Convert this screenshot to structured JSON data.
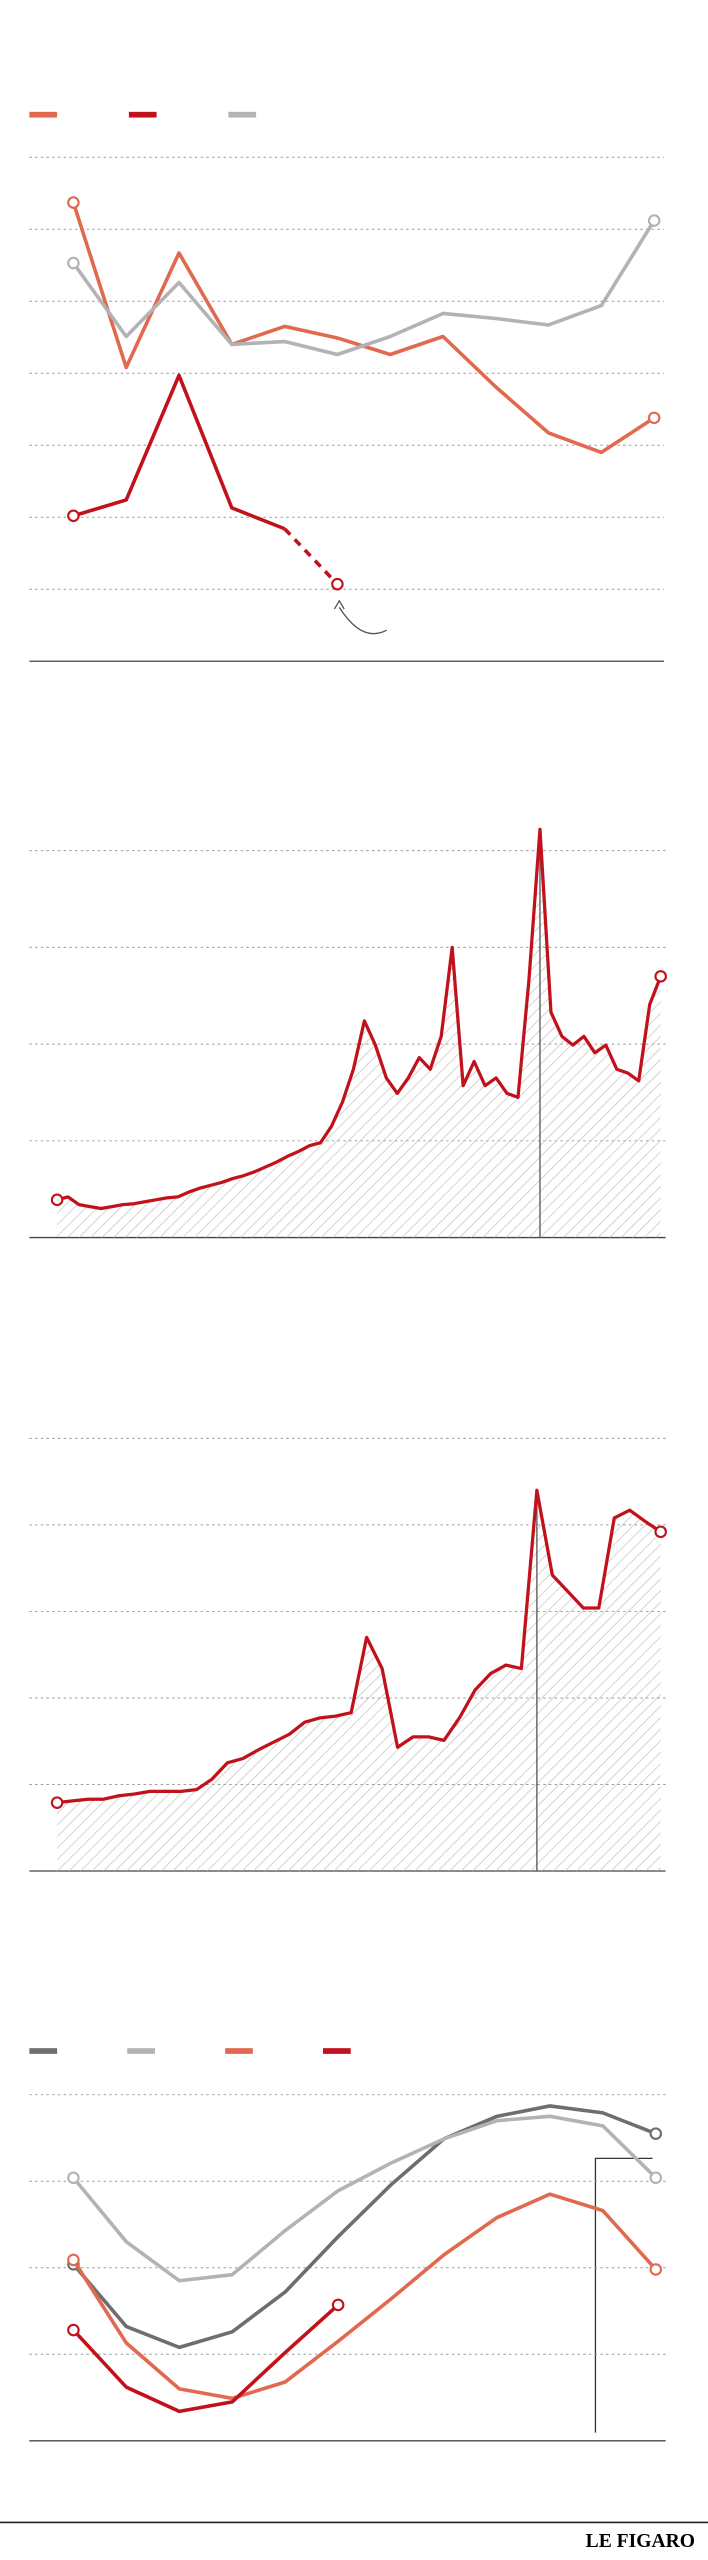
{
  "chart_data": [
    {
      "type": "line",
      "ylim": [
        0,
        7
      ],
      "yticks": [
        1,
        2,
        3,
        4,
        5,
        6,
        7
      ],
      "grid": true,
      "legend": "top-left",
      "categories": [
        null,
        null,
        null,
        null,
        null,
        null,
        null,
        null,
        null,
        null,
        null,
        null
      ],
      "series": [
        {
          "color": "#e0694f",
          "values": [
            6.37,
            4.08,
            5.67,
            4.4,
            4.65,
            4.49,
            4.26,
            4.51,
            3.81,
            3.17,
            2.9,
            3.38
          ]
        },
        {
          "color": "#c1121c",
          "dashed_from": 4,
          "values": [
            2.02,
            2.24,
            3.97,
            2.13,
            1.84,
            1.07,
            null,
            null,
            null,
            null,
            null,
            null
          ]
        },
        {
          "color": "#b3b3b3",
          "values": [
            5.53,
            4.51,
            5.26,
            4.4,
            4.44,
            4.26,
            4.51,
            4.83,
            4.76,
            4.67,
            4.94,
            6.12
          ]
        }
      ]
    },
    {
      "type": "area",
      "ylim": [
        0,
        4
      ],
      "yticks": [
        1,
        2,
        3,
        4
      ],
      "grid": true,
      "color": "#c1121c",
      "marker_index": 44,
      "categories": [
        null,
        null,
        null,
        null,
        null,
        null,
        null,
        null,
        null,
        null,
        null,
        null,
        null,
        null,
        null,
        null,
        null,
        null,
        null,
        null,
        null,
        null,
        null,
        null,
        null,
        null,
        null,
        null,
        null,
        null,
        null,
        null,
        null,
        null,
        null,
        null,
        null,
        null,
        null,
        null,
        null,
        null,
        null,
        null,
        null,
        null,
        null,
        null,
        null,
        null,
        null,
        null,
        null,
        null,
        null,
        null
      ],
      "values": [
        0.39,
        0.42,
        0.34,
        0.32,
        0.3,
        0.32,
        0.34,
        0.35,
        0.37,
        0.39,
        0.41,
        0.42,
        0.47,
        0.51,
        0.54,
        0.57,
        0.61,
        0.64,
        0.68,
        0.73,
        0.78,
        0.84,
        0.89,
        0.95,
        0.98,
        1.15,
        1.4,
        1.74,
        2.24,
        1.99,
        1.65,
        1.49,
        1.65,
        1.86,
        1.74,
        2.08,
        3.0,
        1.57,
        1.82,
        1.57,
        1.65,
        1.49,
        1.45,
        2.67,
        4.22,
        2.33,
        2.08,
        1.99,
        2.08,
        1.91,
        1.99,
        1.74,
        1.7,
        1.62,
        2.41,
        2.7
      ]
    },
    {
      "type": "area",
      "ylim": [
        0,
        5
      ],
      "yticks": [
        1,
        2,
        3,
        4,
        5
      ],
      "grid": true,
      "color": "#c1121c",
      "marker_index": 31,
      "categories": [
        null,
        null,
        null,
        null,
        null,
        null,
        null,
        null,
        null,
        null,
        null,
        null,
        null,
        null,
        null,
        null,
        null,
        null,
        null,
        null,
        null,
        null,
        null,
        null,
        null,
        null,
        null,
        null,
        null,
        null,
        null,
        null,
        null,
        null,
        null,
        null,
        null,
        null,
        null,
        null
      ],
      "values": [
        0.79,
        0.81,
        0.83,
        0.83,
        0.87,
        0.89,
        0.92,
        0.92,
        0.92,
        0.94,
        1.06,
        1.25,
        1.3,
        1.4,
        1.49,
        1.58,
        1.72,
        1.77,
        1.79,
        1.83,
        2.7,
        2.34,
        1.43,
        1.55,
        1.55,
        1.51,
        1.77,
        2.09,
        2.28,
        2.38,
        2.34,
        4.4,
        3.42,
        3.23,
        3.04,
        3.04,
        4.08,
        4.17,
        4.04,
        3.92
      ]
    },
    {
      "type": "line",
      "ylim": [
        0,
        4
      ],
      "yticks": [
        1,
        2,
        3,
        4
      ],
      "grid": true,
      "legend": "top-left",
      "categories": [
        null,
        null,
        null,
        null,
        null,
        null,
        null,
        null,
        null,
        null,
        null,
        null
      ],
      "series": [
        {
          "color": "#6e6e6e",
          "values": [
            2.04,
            1.32,
            1.08,
            1.26,
            1.72,
            2.36,
            2.96,
            3.49,
            3.75,
            3.87,
            3.79,
            3.55
          ]
        },
        {
          "color": "#b3b3b3",
          "values": [
            3.04,
            2.3,
            1.85,
            1.92,
            2.43,
            2.89,
            3.21,
            3.49,
            3.7,
            3.75,
            3.64,
            3.04
          ]
        },
        {
          "color": "#e0694f",
          "values": [
            2.09,
            1.13,
            0.6,
            0.49,
            0.68,
            1.15,
            1.64,
            2.15,
            2.58,
            2.85,
            2.66,
            1.98
          ]
        },
        {
          "color": "#c1121c",
          "values": [
            1.28,
            0.62,
            0.34,
            0.45,
            1.02,
            1.57,
            null,
            null,
            null,
            null,
            null,
            null
          ]
        }
      ]
    }
  ],
  "footer": {
    "brand": "LE FIGARO"
  }
}
